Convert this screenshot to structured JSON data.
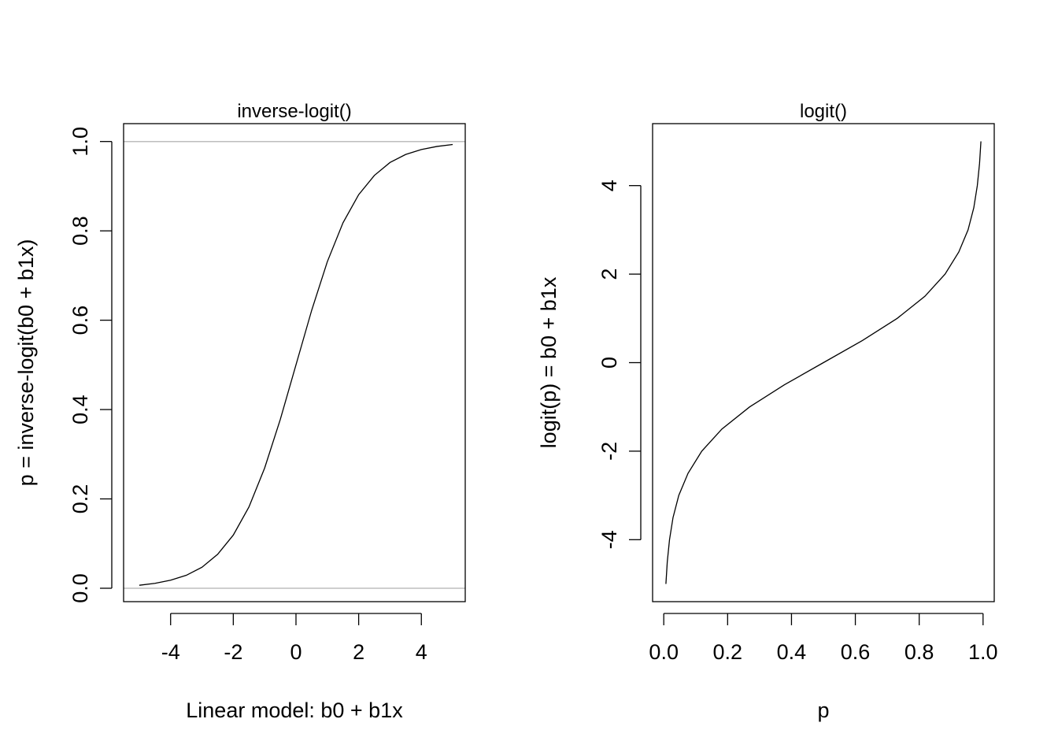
{
  "chart_data": [
    {
      "type": "line",
      "title": "inverse-logit()",
      "xlabel": "Linear model: b0 + b1x",
      "ylabel": "p = inverse-logit(b0 + b1x)",
      "xlim": [
        -5.5,
        5.4
      ],
      "ylim": [
        -0.03,
        1.04
      ],
      "x_ticks": [
        -4,
        -2,
        0,
        2,
        4
      ],
      "x_tick_labels": [
        "-4",
        "-2",
        "0",
        "2",
        "4"
      ],
      "y_ticks": [
        0.0,
        0.2,
        0.4,
        0.6,
        0.8,
        1.0
      ],
      "y_tick_labels": [
        "0.0",
        "0.2",
        "0.4",
        "0.6",
        "0.8",
        "1.0"
      ],
      "reference_lines": {
        "y": [
          0,
          1
        ],
        "color": "#BEBEBE"
      },
      "grid": false,
      "line_color": "#000000",
      "series": [
        {
          "x": [
            -5,
            -4.5,
            -4,
            -3.5,
            -3,
            -2.5,
            -2,
            -1.5,
            -1,
            -0.5,
            0,
            0.5,
            1,
            1.5,
            2,
            2.5,
            3,
            3.5,
            4,
            4.5,
            5
          ],
          "values": [
            0.0067,
            0.011,
            0.018,
            0.029,
            0.047,
            0.076,
            0.119,
            0.182,
            0.269,
            0.378,
            0.5,
            0.622,
            0.731,
            0.818,
            0.881,
            0.924,
            0.953,
            0.971,
            0.982,
            0.989,
            0.9933
          ]
        }
      ]
    },
    {
      "type": "line",
      "title": "logit()",
      "xlabel": "p",
      "ylabel": "logit(p) = b0 + b1x",
      "xlim": [
        -0.035,
        1.035
      ],
      "ylim": [
        -5.4,
        5.4
      ],
      "x_ticks": [
        0.0,
        0.2,
        0.4,
        0.6,
        0.8,
        1.0
      ],
      "x_tick_labels": [
        "0.0",
        "0.2",
        "0.4",
        "0.6",
        "0.8",
        "1.0"
      ],
      "y_ticks": [
        -4,
        -2,
        0,
        2,
        4
      ],
      "y_tick_labels": [
        "-4",
        "-2",
        "0",
        "2",
        "4"
      ],
      "grid": false,
      "line_color": "#000000",
      "series": [
        {
          "x": [
            0.0067,
            0.011,
            0.018,
            0.029,
            0.047,
            0.076,
            0.119,
            0.182,
            0.269,
            0.378,
            0.5,
            0.622,
            0.731,
            0.818,
            0.881,
            0.924,
            0.953,
            0.971,
            0.982,
            0.989,
            0.9933
          ],
          "values": [
            -5,
            -4.5,
            -4,
            -3.5,
            -3,
            -2.5,
            -2,
            -1.5,
            -1,
            -0.5,
            0,
            0.5,
            1,
            1.5,
            2,
            2.5,
            3,
            3.5,
            4,
            4.5,
            5
          ]
        }
      ]
    }
  ]
}
